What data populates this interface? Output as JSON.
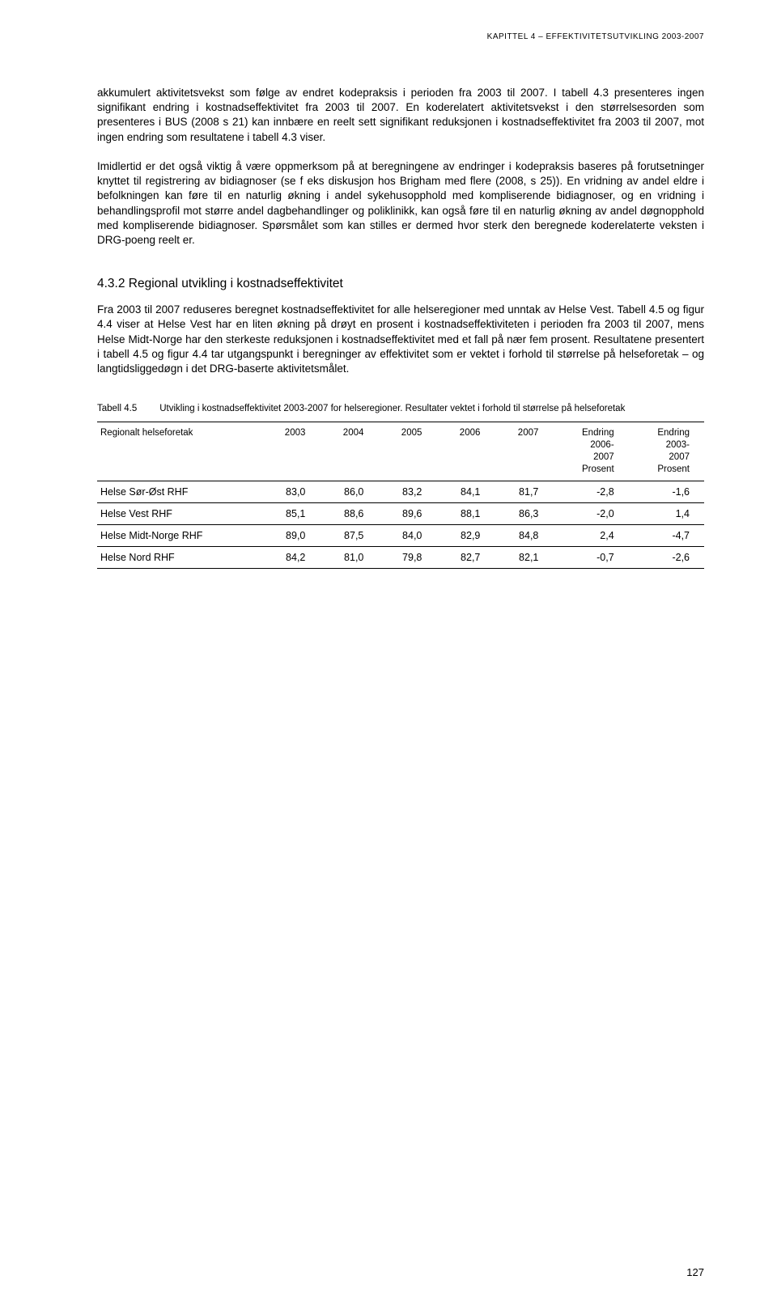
{
  "running_head": "KAPITTEL 4 – EFFEKTIVITETSUTVIKLING 2003-2007",
  "paragraphs": {
    "p1": "akkumulert aktivitetsvekst som følge av endret kodepraksis i perioden fra 2003 til 2007. I tabell 4.3 presenteres ingen signifikant endring i kostnadseffektivitet fra 2003 til 2007. En koderelatert aktivitetsvekst i den størrelsesorden som presenteres i BUS (2008 s 21) kan innbære en reelt sett signifikant reduksjonen i kostnadseffektivitet fra 2003 til 2007, mot ingen endring som resultatene i tabell 4.3 viser.",
    "p2": "Imidlertid er det også viktig å være oppmerksom på at beregningene av endringer i kodepraksis baseres på forutsetninger knyttet til registrering av bidiagnoser (se f eks diskusjon hos Brigham med flere (2008, s 25)). En vridning av andel eldre i befolkningen kan føre til en naturlig økning i andel sykehusopphold med kompliserende bidiagnoser, og en vridning i behandlingsprofil mot større andel dagbehandlinger og poliklinikk, kan også føre til en naturlig økning av andel døgnopphold med kompliserende bidiagnoser. Spørsmålet som kan stilles er dermed hvor sterk den beregnede koderelaterte veksten i DRG-poeng reelt er.",
    "p3": "Fra 2003 til 2007 reduseres beregnet kostnadseffektivitet for alle helseregioner med unntak av Helse Vest. Tabell 4.5 og figur 4.4 viser at Helse Vest har en liten økning på drøyt en prosent i kostnadseffektiviteten i perioden fra 2003 til 2007, mens Helse Midt-Norge har den sterkeste reduksjonen i kostnadseffektivitet med et fall på nær fem prosent. Resultatene presentert i tabell 4.5 og figur 4.4 tar utgangspunkt i beregninger av effektivitet som er vektet i forhold til størrelse på helseforetak – og langtidsliggedøgn i det DRG-baserte aktivitetsmålet."
  },
  "section_heading": "4.3.2   Regional utvikling i kostnadseffektivitet",
  "table": {
    "caption_num": "Tabell 4.5",
    "caption_text": "Utvikling i kostnadseffektivitet 2003-2007 for helseregioner. Resultater vektet i forhold til størrelse på helseforetak",
    "columns": {
      "c0": "Regionalt helseforetak",
      "c1": "2003",
      "c2": "2004",
      "c3": "2005",
      "c4": "2006",
      "c5": "2007",
      "c6a": "Endring",
      "c6b": "2006-",
      "c6c": "2007",
      "c6d": "Prosent",
      "c7a": "Endring",
      "c7b": "2003-",
      "c7c": "2007",
      "c7d": "Prosent"
    },
    "rows": [
      {
        "name": "Helse Sør-Øst RHF",
        "v": [
          "83,0",
          "86,0",
          "83,2",
          "84,1",
          "81,7",
          "-2,8",
          "-1,6"
        ]
      },
      {
        "name": "Helse Vest RHF",
        "v": [
          "85,1",
          "88,6",
          "89,6",
          "88,1",
          "86,3",
          "-2,0",
          "1,4"
        ]
      },
      {
        "name": "Helse Midt-Norge RHF",
        "v": [
          "89,0",
          "87,5",
          "84,0",
          "82,9",
          "84,8",
          "2,4",
          "-4,7"
        ]
      },
      {
        "name": "Helse Nord RHF",
        "v": [
          "84,2",
          "81,0",
          "79,8",
          "82,7",
          "82,1",
          "-0,7",
          "-2,6"
        ]
      }
    ]
  },
  "page_number": "127"
}
